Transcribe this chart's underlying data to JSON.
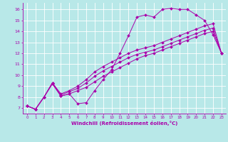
{
  "background_color": "#b8e8e8",
  "line_color": "#aa00aa",
  "grid_color": "#ffffff",
  "xlabel": "Windchill (Refroidissement éolien,°C)",
  "xlabel_color": "#aa00aa",
  "tick_color": "#aa00aa",
  "xlim": [
    -0.5,
    23.5
  ],
  "ylim": [
    6.5,
    16.6
  ],
  "yticks": [
    7,
    8,
    9,
    10,
    11,
    12,
    13,
    14,
    15,
    16
  ],
  "xticks": [
    0,
    1,
    2,
    3,
    4,
    5,
    6,
    7,
    8,
    9,
    10,
    11,
    12,
    13,
    14,
    15,
    16,
    17,
    18,
    19,
    20,
    21,
    22,
    23
  ],
  "series": [
    {
      "x": [
        0,
        1,
        2,
        3,
        4,
        5,
        6,
        7,
        8,
        9,
        10,
        11,
        12,
        13,
        14,
        15,
        16,
        17,
        18,
        19,
        20,
        21,
        22,
        23
      ],
      "y": [
        7.2,
        6.9,
        8.0,
        9.3,
        8.1,
        8.3,
        7.4,
        7.5,
        8.6,
        9.6,
        10.5,
        12.0,
        13.6,
        15.3,
        15.5,
        15.3,
        16.0,
        16.1,
        16.0,
        16.0,
        15.5,
        15.0,
        13.7,
        12.0
      ]
    },
    {
      "x": [
        0,
        1,
        2,
        3,
        4,
        5,
        6,
        7,
        8,
        9,
        10,
        11,
        12,
        13,
        14,
        15,
        16,
        17,
        18,
        19,
        20,
        21,
        22,
        23
      ],
      "y": [
        7.2,
        6.9,
        8.0,
        9.3,
        8.3,
        8.6,
        9.0,
        9.6,
        10.3,
        10.8,
        11.2,
        11.6,
        12.0,
        12.3,
        12.5,
        12.7,
        13.0,
        13.3,
        13.6,
        13.9,
        14.2,
        14.5,
        14.7,
        12.0
      ]
    },
    {
      "x": [
        0,
        1,
        2,
        3,
        4,
        5,
        6,
        7,
        8,
        9,
        10,
        11,
        12,
        13,
        14,
        15,
        16,
        17,
        18,
        19,
        20,
        21,
        22,
        23
      ],
      "y": [
        7.2,
        6.9,
        8.0,
        9.3,
        8.2,
        8.5,
        8.8,
        9.3,
        9.9,
        10.4,
        10.8,
        11.2,
        11.6,
        11.9,
        12.1,
        12.3,
        12.6,
        12.9,
        13.2,
        13.5,
        13.8,
        14.1,
        14.3,
        12.0
      ]
    },
    {
      "x": [
        0,
        1,
        2,
        3,
        4,
        5,
        6,
        7,
        8,
        9,
        10,
        11,
        12,
        13,
        14,
        15,
        16,
        17,
        18,
        19,
        20,
        21,
        22,
        23
      ],
      "y": [
        7.2,
        6.9,
        8.0,
        9.2,
        8.1,
        8.3,
        8.6,
        8.9,
        9.4,
        9.9,
        10.3,
        10.7,
        11.1,
        11.5,
        11.8,
        12.0,
        12.3,
        12.6,
        12.9,
        13.2,
        13.5,
        13.8,
        14.0,
        12.0
      ]
    }
  ]
}
